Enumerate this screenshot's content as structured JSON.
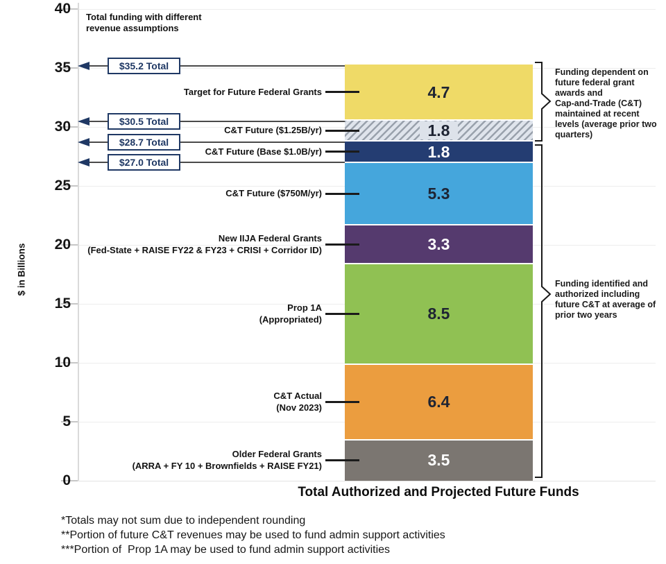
{
  "header_note": "Total funding with different\nrevenue assumptions",
  "y_axis_title": "$ in Billions",
  "x_axis_title": "Total Authorized and Projected Future Funds",
  "chart_data": {
    "type": "bar",
    "stacked": true,
    "title": "Total Authorized and Projected Future Funds",
    "ylabel": "$ in Billions",
    "ylim": [
      0,
      40
    ],
    "yticks": [
      0,
      5,
      10,
      15,
      20,
      25,
      30,
      35,
      40
    ],
    "grid": true,
    "categories": [
      "Total Authorized and Projected Future Funds"
    ],
    "segments_bottom_to_top": [
      {
        "label": "Older Federal Grants",
        "sublabel": "(ARRA + FY 10 + Brownfields + RAISE FY21)",
        "value": 3.5,
        "color": "#7b7671",
        "value_color": "#ffffff",
        "hatched": false
      },
      {
        "label": "C&T Actual",
        "sublabel": "(Nov 2023)",
        "value": 6.4,
        "color": "#eb9d3f",
        "value_color": "#1e2433",
        "hatched": false
      },
      {
        "label": "Prop 1A",
        "sublabel": "(Appropriated)",
        "value": 8.5,
        "color": "#90c153",
        "value_color": "#1e2433",
        "hatched": false
      },
      {
        "label": "New IIJA Federal Grants",
        "sublabel": "(Fed-State + RAISE FY22 & FY23 + CRISI + Corridor ID)",
        "value": 3.3,
        "color": "#553a6e",
        "value_color": "#ffffff",
        "hatched": false
      },
      {
        "label": "C&T Future ($750M/yr)",
        "sublabel": "",
        "value": 5.3,
        "color": "#45a6dc",
        "value_color": "#1e2433",
        "hatched": false
      },
      {
        "label": "C&T Future (Base $1.0B/yr)",
        "sublabel": "",
        "value": 1.8,
        "color": "#243d72",
        "value_color": "#ffffff",
        "hatched": false
      },
      {
        "label": "C&T Future ($1.25B/yr)",
        "sublabel": "",
        "value": 1.8,
        "color": "#dfe4ec",
        "value_color": "#1e2433",
        "hatched": true
      },
      {
        "label": "Target for Future Federal Grants",
        "sublabel": "",
        "value": 4.7,
        "color": "#efda67",
        "value_color": "#1e2433",
        "hatched": false
      }
    ],
    "totals": [
      {
        "label": "$35.2 Total",
        "value": 35.2
      },
      {
        "label": "$30.5 Total",
        "value": 30.5
      },
      {
        "label": "$28.7 Total",
        "value": 28.7
      },
      {
        "label": "$27.0 Total",
        "value": 27.0
      }
    ]
  },
  "annotations": {
    "top_brace_text": "Funding dependent on\nfuture federal grant\nawards and\nCap-and-Trade (C&T)\nmaintained at recent\nlevels (average prior two\nquarters)",
    "bottom_brace_text": "Funding identified and\nauthorized including\nfuture C&T at average of\nprior two years"
  },
  "footnotes": [
    "*Totals may not sum due to independent rounding",
    "**Portion of future C&T revenues may be used to fund admin support activities",
    "***Portion of  Prop 1A may be used to fund admin support activities"
  ],
  "colors": {
    "accent_navy": "#1f3864",
    "line_black": "#1a1a1a"
  }
}
